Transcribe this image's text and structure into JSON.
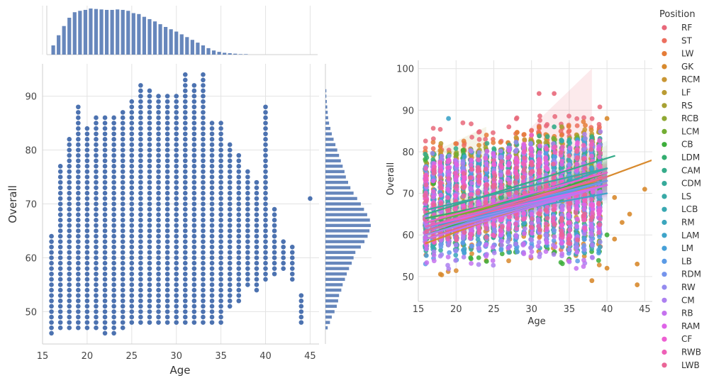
{
  "chart_data": [
    {
      "type": "scatter",
      "title": "",
      "xlabel": "Age",
      "ylabel": "Overall",
      "xlim": [
        15,
        46
      ],
      "ylim": [
        44,
        96
      ],
      "xticks": [
        15,
        20,
        25,
        30,
        35,
        40,
        45
      ],
      "yticks": [
        50,
        60,
        70,
        80,
        90
      ],
      "grid": true,
      "point_color": "#4c72b0",
      "series": [
        {
          "values": [
            [
              16,
              46,
              64
            ],
            [
              17,
              47,
              77
            ],
            [
              18,
              47,
              82
            ],
            [
              19,
              47,
              88
            ],
            [
              20,
              47,
              84
            ],
            [
              21,
              47,
              86
            ],
            [
              22,
              46,
              86
            ],
            [
              23,
              46,
              86
            ],
            [
              24,
              47,
              87
            ],
            [
              25,
              48,
              89
            ],
            [
              26,
              48,
              92
            ],
            [
              27,
              48,
              91
            ],
            [
              28,
              48,
              90
            ],
            [
              29,
              48,
              90
            ],
            [
              30,
              48,
              90
            ],
            [
              31,
              48,
              94
            ],
            [
              32,
              48,
              92
            ],
            [
              33,
              48,
              94
            ],
            [
              34,
              48,
              85
            ],
            [
              35,
              48,
              85
            ],
            [
              36,
              51,
              81
            ],
            [
              37,
              52,
              79
            ],
            [
              38,
              55,
              76
            ],
            [
              39,
              54,
              74
            ],
            [
              40,
              56,
              88
            ],
            [
              41,
              57,
              69
            ],
            [
              42,
              58,
              63
            ],
            [
              43,
              56,
              62
            ],
            [
              44,
              48,
              53
            ],
            [
              45,
              71,
              71
            ]
          ]
        }
      ]
    },
    {
      "type": "bar",
      "title": "",
      "xlabel": "",
      "ylabel": "",
      "orientation": "vertical",
      "bar_color": "#4c72b0",
      "bins": [
        16.2,
        16.8,
        17.4,
        18.0,
        18.6,
        19.2,
        19.8,
        20.4,
        21.0,
        21.6,
        22.2,
        22.8,
        23.4,
        24.0,
        24.6,
        25.2,
        25.8,
        26.4,
        27.0,
        27.6,
        28.2,
        28.8,
        29.4,
        30.0,
        30.6,
        31.2,
        31.8,
        32.4,
        33.0,
        33.6,
        34.2,
        34.8,
        35.4,
        36.0,
        36.6,
        37.2,
        37.8
      ],
      "values": [
        0.2,
        0.42,
        0.62,
        0.8,
        0.92,
        0.95,
        0.97,
        1.0,
        0.99,
        0.98,
        0.97,
        0.97,
        0.98,
        0.97,
        0.95,
        0.9,
        0.88,
        0.82,
        0.77,
        0.72,
        0.66,
        0.6,
        0.55,
        0.5,
        0.44,
        0.38,
        0.32,
        0.26,
        0.2,
        0.14,
        0.09,
        0.06,
        0.04,
        0.03,
        0.02,
        0.01,
        0.01
      ]
    },
    {
      "type": "bar",
      "title": "",
      "xlabel": "",
      "ylabel": "",
      "orientation": "horizontal",
      "bar_color": "#4c72b0",
      "bins": [
        47,
        48,
        49,
        50,
        51,
        52,
        53,
        54,
        55,
        56,
        57,
        58,
        59,
        60,
        61,
        62,
        63,
        64,
        65,
        66,
        67,
        68,
        69,
        70,
        71,
        72,
        73,
        74,
        75,
        76,
        77,
        78,
        79,
        80,
        81,
        82,
        83,
        84,
        85,
        86,
        87,
        88,
        89,
        90,
        91
      ],
      "values": [
        0.05,
        0.1,
        0.14,
        0.2,
        0.25,
        0.28,
        0.3,
        0.35,
        0.38,
        0.43,
        0.47,
        0.52,
        0.58,
        0.62,
        0.66,
        0.78,
        0.86,
        0.93,
        0.97,
        1.0,
        0.98,
        0.92,
        0.85,
        0.78,
        0.7,
        0.62,
        0.55,
        0.5,
        0.45,
        0.42,
        0.38,
        0.34,
        0.3,
        0.26,
        0.22,
        0.18,
        0.14,
        0.11,
        0.08,
        0.06,
        0.05,
        0.04,
        0.03,
        0.02,
        0.02
      ]
    },
    {
      "type": "scatter",
      "title": "",
      "xlabel": "Age",
      "ylabel": "Overall",
      "xlim": [
        15,
        46
      ],
      "ylim": [
        44,
        102
      ],
      "xticks": [
        15,
        20,
        25,
        30,
        35,
        40,
        45
      ],
      "yticks": [
        50,
        60,
        70,
        80,
        90,
        100
      ],
      "grid": true,
      "legend_title": "Position",
      "legend_position": "right",
      "regression_lines": true,
      "series": [
        {
          "name": "RF",
          "color": "#e8687a",
          "lo": 60,
          "hi": 94,
          "points": [
            [
              31,
              94
            ],
            [
              33,
              94
            ],
            [
              27,
              86
            ]
          ],
          "line": [
            59,
            74
          ]
        },
        {
          "name": "ST",
          "color": "#ec6f5f",
          "lo": 52,
          "hi": 91,
          "points": [
            [
              35,
              85
            ],
            [
              37,
              80
            ]
          ],
          "line": [
            60,
            72
          ]
        },
        {
          "name": "LW",
          "color": "#e57c38",
          "lo": 52,
          "hi": 91,
          "points": [
            [
              34,
              84
            ]
          ],
          "line": [
            61,
            73
          ]
        },
        {
          "name": "GK",
          "color": "#d88a2e",
          "lo": 46,
          "hi": 90,
          "points": [
            [
              45,
              71
            ],
            [
              44,
              53
            ],
            [
              44,
              48
            ],
            [
              43,
              65
            ],
            [
              42,
              63
            ],
            [
              41,
              69
            ],
            [
              40,
              88
            ],
            [
              39,
              74
            ],
            [
              41,
              59
            ],
            [
              40,
              52
            ],
            [
              38,
              49
            ]
          ],
          "line": [
            58,
            78
          ]
        },
        {
          "name": "RCM",
          "color": "#c99633",
          "lo": 56,
          "hi": 88,
          "points": [
            [
              36,
              80
            ]
          ],
          "line": [
            64,
            72
          ]
        },
        {
          "name": "LF",
          "color": "#ba9b33",
          "lo": 62,
          "hi": 84,
          "points": [
            [
              18,
              82
            ],
            [
              30,
              84
            ]
          ],
          "line": [
            66,
            76
          ]
        },
        {
          "name": "RS",
          "color": "#a7a133",
          "lo": 60,
          "hi": 86,
          "points": [
            [
              34,
              86
            ]
          ],
          "line": [
            63,
            74
          ]
        },
        {
          "name": "RCB",
          "color": "#8fa833",
          "lo": 53,
          "hi": 87,
          "points": [
            [
              37,
              78
            ]
          ],
          "line": [
            62,
            74
          ]
        },
        {
          "name": "LCM",
          "color": "#73ad33",
          "lo": 55,
          "hi": 87,
          "points": [
            [
              36,
              80
            ]
          ],
          "line": [
            63,
            73
          ]
        },
        {
          "name": "CB",
          "color": "#3dae3b",
          "lo": 48,
          "hi": 88,
          "points": [
            [
              40,
              60
            ],
            [
              39,
              56
            ],
            [
              37,
              79
            ]
          ],
          "line": [
            60,
            75
          ]
        },
        {
          "name": "LDM",
          "color": "#33ad6f",
          "lo": 55,
          "hi": 86,
          "points": [
            [
              38,
              68
            ]
          ],
          "line": [
            64,
            73
          ]
        },
        {
          "name": "CAM",
          "color": "#35ab8a",
          "lo": 54,
          "hi": 88,
          "points": [
            [
              33,
              86
            ]
          ],
          "line": [
            65,
            79
          ]
        },
        {
          "name": "CDM",
          "color": "#36aa9a",
          "lo": 52,
          "hi": 86,
          "points": [
            [
              36,
              78
            ],
            [
              39,
              61
            ]
          ],
          "line": [
            62,
            74
          ]
        },
        {
          "name": "LS",
          "color": "#38a9a6",
          "lo": 58,
          "hi": 84,
          "points": [
            [
              37,
              72
            ]
          ],
          "line": [
            66,
            76
          ]
        },
        {
          "name": "LCB",
          "color": "#39a8b1",
          "lo": 54,
          "hi": 86,
          "points": [
            [
              38,
              69
            ]
          ],
          "line": [
            61,
            76
          ]
        },
        {
          "name": "RM",
          "color": "#3ba6bd",
          "lo": 50,
          "hi": 86,
          "points": [
            [
              39,
              72
            ]
          ],
          "line": [
            61,
            72
          ]
        },
        {
          "name": "LAM",
          "color": "#3ea4c9",
          "lo": 58,
          "hi": 82,
          "points": [
            [
              19,
              88
            ]
          ],
          "line": [
            62,
            70
          ]
        },
        {
          "name": "LM",
          "color": "#46a0d8",
          "lo": 50,
          "hi": 86,
          "points": [
            [
              39,
              70
            ]
          ],
          "line": [
            61,
            73
          ]
        },
        {
          "name": "LB",
          "color": "#5b9be6",
          "lo": 50,
          "hi": 84,
          "points": [
            [
              39,
              62
            ]
          ],
          "line": [
            60,
            73
          ]
        },
        {
          "name": "RDM",
          "color": "#7594ec",
          "lo": 54,
          "hi": 84,
          "points": [
            [
              37,
              66
            ]
          ],
          "line": [
            62,
            73
          ]
        },
        {
          "name": "RW",
          "color": "#948bef",
          "lo": 52,
          "hi": 88,
          "points": [
            [
              34,
              58
            ]
          ],
          "line": [
            61,
            72
          ]
        },
        {
          "name": "CM",
          "color": "#ad80f0",
          "lo": 47,
          "hi": 88,
          "points": [
            [
              38,
              60
            ]
          ],
          "line": [
            60,
            72
          ]
        },
        {
          "name": "RB",
          "color": "#c572ee",
          "lo": 48,
          "hi": 86,
          "points": [
            [
              36,
              62
            ]
          ],
          "line": [
            59,
            72
          ]
        },
        {
          "name": "RAM",
          "color": "#de63e8",
          "lo": 55,
          "hi": 86,
          "points": [
            [
              34,
              58
            ]
          ],
          "line": [
            62,
            72
          ]
        },
        {
          "name": "CF",
          "color": "#ed5fd2",
          "lo": 58,
          "hi": 84,
          "points": [
            [
              30,
              84
            ]
          ],
          "line": [
            63,
            75
          ]
        },
        {
          "name": "RWB",
          "color": "#ee60b7",
          "lo": 56,
          "hi": 84,
          "points": [
            [
              35,
              66
            ]
          ],
          "line": [
            62,
            74
          ]
        },
        {
          "name": "LWB",
          "color": "#ea6597",
          "lo": 56,
          "hi": 82,
          "points": [
            [
              34,
              64
            ]
          ],
          "line": [
            61,
            74
          ]
        }
      ]
    }
  ]
}
